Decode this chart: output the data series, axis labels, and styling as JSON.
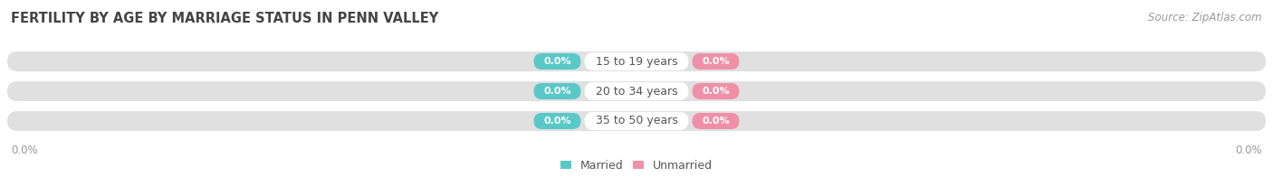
{
  "title": "FERTILITY BY AGE BY MARRIAGE STATUS IN PENN VALLEY",
  "source_text": "Source: ZipAtlas.com",
  "categories": [
    "15 to 19 years",
    "20 to 34 years",
    "35 to 50 years"
  ],
  "married_values": [
    0.0,
    0.0,
    0.0
  ],
  "unmarried_values": [
    0.0,
    0.0,
    0.0
  ],
  "married_color": "#5bc8c8",
  "unmarried_color": "#f090a8",
  "bar_bg_color": "#e0e0e0",
  "label_text_color": "#ffffff",
  "category_text_color": "#555555",
  "category_bg_color": "#ffffff",
  "axis_label_color": "#999999",
  "title_color": "#444444",
  "background_color": "#ffffff",
  "legend_married": "Married",
  "legend_unmarried": "Unmarried",
  "title_fontsize": 10.5,
  "source_fontsize": 8.5,
  "tick_fontsize": 8.5,
  "label_fontsize": 8.0,
  "category_fontsize": 9.0
}
